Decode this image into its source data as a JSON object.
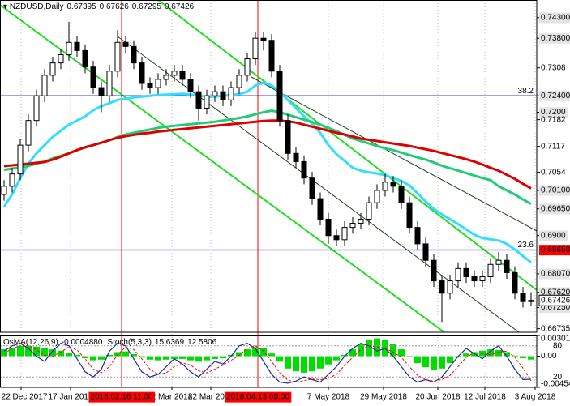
{
  "chart_data": {
    "type": "candlestick",
    "title": "NZDUSD,Daily",
    "open": [
      0.7,
      0.702,
      0.705,
      0.712,
      0.718,
      0.724,
      0.729,
      0.732,
      0.734,
      0.737,
      0.735,
      0.731,
      0.726,
      0.724,
      0.73,
      0.737,
      0.736,
      0.732,
      0.727,
      0.726,
      0.728,
      0.729,
      0.73,
      0.728,
      0.725,
      0.721,
      0.724,
      0.725,
      0.723,
      0.726,
      0.729,
      0.733,
      0.738,
      0.7375,
      0.73,
      0.718,
      0.71,
      0.708,
      0.704,
      0.699,
      0.694,
      0.69,
      0.689,
      0.692,
      0.693,
      0.694,
      0.698,
      0.701,
      0.703,
      0.702,
      0.698,
      0.692,
      0.688,
      0.684,
      0.679,
      0.676,
      0.679,
      0.682,
      0.68,
      0.679,
      0.68,
      0.683,
      0.684,
      0.681,
      0.676,
      0.67395
    ],
    "high": [
      0.7035,
      0.7065,
      0.7135,
      0.7195,
      0.7255,
      0.7305,
      0.7335,
      0.7355,
      0.742,
      0.7385,
      0.7365,
      0.7325,
      0.7275,
      0.7315,
      0.74,
      0.7385,
      0.7375,
      0.7335,
      0.7285,
      0.7295,
      0.7305,
      0.7315,
      0.7315,
      0.7295,
      0.7265,
      0.7255,
      0.7265,
      0.7265,
      0.7275,
      0.7305,
      0.7345,
      0.7395,
      0.7395,
      0.739,
      0.7315,
      0.7195,
      0.7115,
      0.7095,
      0.7055,
      0.7005,
      0.6955,
      0.6915,
      0.6935,
      0.6945,
      0.6955,
      0.6995,
      0.7025,
      0.705,
      0.7045,
      0.7035,
      0.6995,
      0.6935,
      0.6895,
      0.6855,
      0.6805,
      0.6805,
      0.6835,
      0.6835,
      0.6815,
      0.6815,
      0.6845,
      0.686,
      0.6855,
      0.6825,
      0.6775,
      0.67626
    ],
    "low": [
      0.6985,
      0.7005,
      0.7035,
      0.7105,
      0.7165,
      0.7225,
      0.7275,
      0.7305,
      0.7325,
      0.7335,
      0.7295,
      0.7245,
      0.72,
      0.7225,
      0.7285,
      0.7345,
      0.7305,
      0.7255,
      0.7245,
      0.7245,
      0.7265,
      0.7275,
      0.7265,
      0.7235,
      0.718,
      0.7195,
      0.7225,
      0.7215,
      0.7215,
      0.7245,
      0.7275,
      0.7315,
      0.735,
      0.7285,
      0.7165,
      0.7085,
      0.7065,
      0.7025,
      0.6975,
      0.6925,
      0.688,
      0.6875,
      0.6875,
      0.6905,
      0.6915,
      0.6925,
      0.6965,
      0.6995,
      0.7005,
      0.6965,
      0.6905,
      0.6865,
      0.6825,
      0.6775,
      0.669,
      0.6745,
      0.6775,
      0.6785,
      0.6775,
      0.6775,
      0.6785,
      0.6815,
      0.6795,
      0.6745,
      0.6725,
      0.67295
    ],
    "close": [
      0.702,
      0.705,
      0.712,
      0.718,
      0.724,
      0.729,
      0.732,
      0.734,
      0.737,
      0.735,
      0.731,
      0.726,
      0.724,
      0.73,
      0.737,
      0.736,
      0.732,
      0.727,
      0.726,
      0.728,
      0.729,
      0.73,
      0.728,
      0.725,
      0.721,
      0.724,
      0.725,
      0.723,
      0.726,
      0.729,
      0.733,
      0.738,
      0.7375,
      0.73,
      0.718,
      0.71,
      0.708,
      0.704,
      0.699,
      0.694,
      0.69,
      0.689,
      0.692,
      0.693,
      0.694,
      0.698,
      0.701,
      0.703,
      0.702,
      0.698,
      0.692,
      0.688,
      0.684,
      0.679,
      0.676,
      0.679,
      0.682,
      0.68,
      0.679,
      0.68,
      0.683,
      0.684,
      0.681,
      0.676,
      0.67395,
      0.67426
    ],
    "ma": [
      {
        "color": "#33ddff",
        "values": [
          0.697,
          0.7,
          0.704,
          0.7075,
          0.71,
          0.712,
          0.714,
          0.7155,
          0.717,
          0.718,
          0.719,
          0.7205,
          0.7215,
          0.7222,
          0.723,
          0.7233,
          0.7236,
          0.7238,
          0.724,
          0.7242,
          0.7243,
          0.7244,
          0.7245,
          0.7243,
          0.724,
          0.7238,
          0.7238,
          0.724,
          0.7242,
          0.7244,
          0.725,
          0.7265,
          0.7272,
          0.7265,
          0.725,
          0.723,
          0.721,
          0.719,
          0.7172,
          0.715,
          0.712,
          0.7098,
          0.7082,
          0.7065,
          0.7058,
          0.7054,
          0.7051,
          0.7047,
          0.704,
          0.7033,
          0.7022,
          0.7003,
          0.6983,
          0.6965,
          0.6952,
          0.694,
          0.6928,
          0.6915,
          0.6902,
          0.6894,
          0.6891,
          0.6888,
          0.688,
          0.6866,
          0.685,
          0.6835
        ]
      },
      {
        "color": "#22cc77",
        "values": [
          0.706,
          0.7063,
          0.7066,
          0.707,
          0.7075,
          0.708,
          0.7088,
          0.7094,
          0.71,
          0.7108,
          0.7114,
          0.712,
          0.7126,
          0.7132,
          0.714,
          0.7146,
          0.715,
          0.7154,
          0.7158,
          0.7162,
          0.7165,
          0.7167,
          0.7169,
          0.7171,
          0.7173,
          0.7175,
          0.7177,
          0.718,
          0.7183,
          0.7186,
          0.719,
          0.7195,
          0.72,
          0.7204,
          0.72,
          0.7194,
          0.7188,
          0.7182,
          0.7176,
          0.717,
          0.7162,
          0.7154,
          0.7145,
          0.7136,
          0.713,
          0.7124,
          0.7118,
          0.7112,
          0.7108,
          0.7102,
          0.7096,
          0.709,
          0.7085,
          0.7078,
          0.707,
          0.7064,
          0.7058,
          0.7052,
          0.7046,
          0.704,
          0.7035,
          0.702,
          0.701,
          0.7,
          0.6988,
          0.6977
        ]
      },
      {
        "color": "#dd0000",
        "values": [
          0.7069,
          0.7071,
          0.7073,
          0.7075,
          0.7077,
          0.7079,
          0.7085,
          0.7092,
          0.71,
          0.7108,
          0.7115,
          0.712,
          0.7126,
          0.7132,
          0.7138,
          0.7142,
          0.7145,
          0.7148,
          0.715,
          0.7153,
          0.7155,
          0.7157,
          0.7159,
          0.7161,
          0.7163,
          0.7165,
          0.7167,
          0.7169,
          0.7171,
          0.7173,
          0.7175,
          0.7177,
          0.7179,
          0.718,
          0.718,
          0.7178,
          0.7175,
          0.717,
          0.7165,
          0.716,
          0.7155,
          0.715,
          0.7146,
          0.7141,
          0.7136,
          0.7133,
          0.713,
          0.7127,
          0.7124,
          0.7121,
          0.7118,
          0.7114,
          0.711,
          0.7106,
          0.7101,
          0.7096,
          0.7091,
          0.7086,
          0.708,
          0.7073,
          0.7065,
          0.7058,
          0.7048,
          0.7038,
          0.7026,
          0.7015
        ]
      }
    ],
    "xlim": [
      -0.5,
      65.7
    ],
    "ylim": [
      0.6665,
      0.7473
    ],
    "yticks": [
      {
        "value": 0.743,
        "label": "0.74300"
      },
      {
        "value": 0.738,
        "label": "0.73800"
      },
      0.7308,
      {
        "value": 0.724,
        "label": "0.72400"
      },
      {
        "value": 0.72,
        "label": "0.7200"
      },
      0.7182,
      0.7117,
      0.7054,
      {
        "value": 0.701,
        "label": "0.70100"
      },
      {
        "value": 0.6965,
        "label": "0.69650"
      },
      {
        "value": 0.69,
        "label": "0.6900"
      },
      {
        "value": 0.6807,
        "label": "0.68070"
      },
      {
        "value": 0.6762,
        "label": "0.67620"
      },
      {
        "value": 0.6725,
        "label": "0.67250"
      },
      0.66735
    ],
    "xticks": [
      {
        "value": 2.1,
        "label": "22 Dec 2017"
      },
      {
        "value": 8.2,
        "label": "17 Jan 2018"
      },
      {
        "value": 20.7,
        "label": "2 Mar 2018"
      },
      {
        "value": 25.5,
        "label": "22 Mar 2018"
      },
      {
        "value": 40,
        "label": "7 May 2018"
      },
      {
        "value": 46.8,
        "label": "29 May 2018"
      },
      {
        "value": 53.5,
        "label": "20 Jun 2018"
      },
      {
        "value": 59.3,
        "label": "12 Jul 2018"
      },
      {
        "value": 65.5,
        "label": "3 Aug 2018"
      }
    ],
    "grid": true,
    "levels": [
      {
        "value": 0.724,
        "label": "38.2",
        "color": "#0000cd"
      },
      {
        "value": 0.6865,
        "label": "23.6",
        "color": "#0000cd",
        "price_label": "0.68650",
        "price_label_color": "#ff0000"
      }
    ],
    "events": [
      {
        "value": 14.5,
        "label": "2018.02.16 11:00",
        "color": "#ff0000"
      },
      {
        "value": 31.3,
        "label": "2018.04.13 00:00",
        "color": "#ff0000"
      }
    ],
    "osma": {
      "title": "OsMA(12,26,9)",
      "value_label": "-0.0004880",
      "color": "#00dd00",
      "ylim": [
        -0.00454,
        0.003018
      ],
      "yticks": [
        {
          "value": 0.003018,
          "label": "0.003018"
        },
        {
          "value": 0,
          "label": "0.00"
        },
        {
          "value": -0.00454,
          "label": "-0.004540"
        }
      ],
      "values": [
        0.001,
        0.0012,
        0.0015,
        0.0015,
        0.0014,
        0.0012,
        0.001,
        0.0008,
        0.0005,
        0.0002,
        -0.0003,
        -0.0006,
        -0.0005,
        0.0002,
        0.0006,
        0.0007,
        0.0003,
        -0.0002,
        -0.0005,
        -0.0006,
        -0.0005,
        -0.0004,
        -0.0004,
        -0.0006,
        -0.0008,
        -0.0006,
        -0.0004,
        -0.0003,
        0.0002,
        0.0006,
        0.001,
        0.0013,
        0.0012,
        0.0004,
        -0.0008,
        -0.0018,
        -0.0022,
        -0.0024,
        -0.0022,
        -0.0018,
        -0.0012,
        -0.0006,
        0.0002,
        0.001,
        0.0018,
        0.0024,
        0.0026,
        0.0024,
        0.0018,
        0.001,
        0.0,
        -0.001,
        -0.0016,
        -0.002,
        -0.0018,
        -0.001,
        -0.0002,
        0.0004,
        0.0006,
        0.0008,
        0.001,
        0.0009,
        0.0006,
        0.0001,
        -0.0003,
        -0.000488
      ]
    },
    "stoch": {
      "title": "Stoch(5,3,3)",
      "k_color": "#1a2a9a",
      "d_color": "#ff0000",
      "ylim": [
        0,
        100
      ],
      "yticks": [
        80,
        20
      ],
      "k": [
        70,
        80,
        85,
        75,
        60,
        50,
        70,
        85,
        80,
        55,
        30,
        20,
        35,
        70,
        85,
        80,
        55,
        30,
        20,
        25,
        40,
        55,
        45,
        30,
        20,
        35,
        50,
        45,
        60,
        80,
        85,
        75,
        50,
        25,
        10,
        8,
        12,
        20,
        15,
        10,
        25,
        40,
        60,
        75,
        85,
        80,
        70,
        75,
        60,
        40,
        20,
        10,
        15,
        10,
        20,
        40,
        60,
        75,
        65,
        55,
        70,
        80,
        60,
        35,
        15,
        15.6369
      ],
      "d": [
        65,
        75,
        80,
        80,
        72,
        62,
        60,
        68,
        78,
        72,
        55,
        35,
        28,
        40,
        63,
        78,
        73,
        55,
        35,
        25,
        28,
        40,
        47,
        43,
        32,
        28,
        35,
        43,
        52,
        62,
        75,
        80,
        70,
        50,
        28,
        14,
        10,
        13,
        16,
        15,
        17,
        25,
        42,
        58,
        73,
        80,
        78,
        75,
        68,
        58,
        40,
        23,
        15,
        12,
        15,
        23,
        40,
        58,
        67,
        65,
        63,
        68,
        70,
        58,
        37,
        12.5806
      ]
    }
  }
}
